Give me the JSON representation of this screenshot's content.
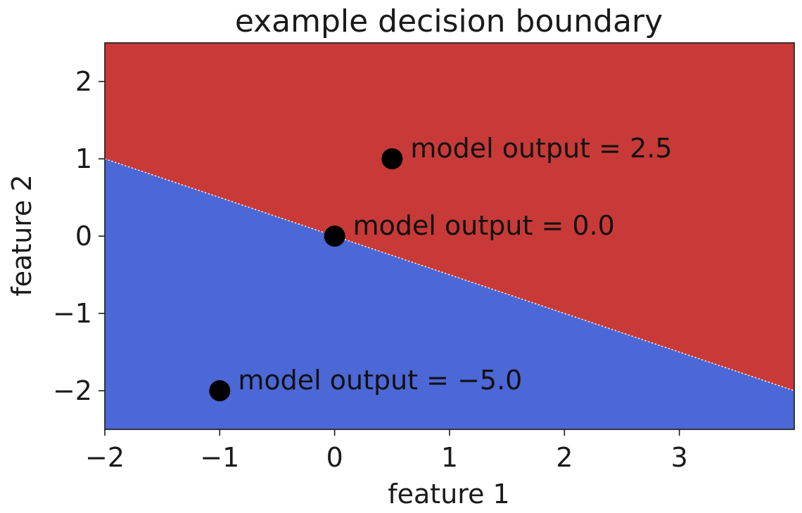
{
  "chart_data": {
    "type": "scatter",
    "title": "example decision boundary",
    "xlabel": "feature 1",
    "ylabel": "feature 2",
    "xlim": [
      -2,
      4
    ],
    "ylim": [
      -2.5,
      2.5
    ],
    "xticks": [
      -2,
      -1,
      0,
      1,
      2,
      3
    ],
    "xtick_labels": [
      "−2",
      "−1",
      "0",
      "1",
      "2",
      "3"
    ],
    "yticks": [
      2,
      1,
      0,
      -1,
      -2
    ],
    "ytick_labels": [
      "2",
      "1",
      "0",
      "−1",
      "−2"
    ],
    "grid": false,
    "decision_boundary": {
      "points": [
        [
          -2,
          1
        ],
        [
          4,
          -2
        ]
      ],
      "positive_region": "above",
      "positive_color": "#c83a37",
      "negative_color": "#4c67d6",
      "line_color": "#f2f2f2"
    },
    "points": [
      {
        "x": 0.5,
        "y": 1,
        "label": "model output = 2.5"
      },
      {
        "x": 0,
        "y": 0,
        "label": "model output = 0.0"
      },
      {
        "x": -1,
        "y": -2,
        "label": "model output = −5.0"
      }
    ],
    "marker_color": "#000000"
  }
}
